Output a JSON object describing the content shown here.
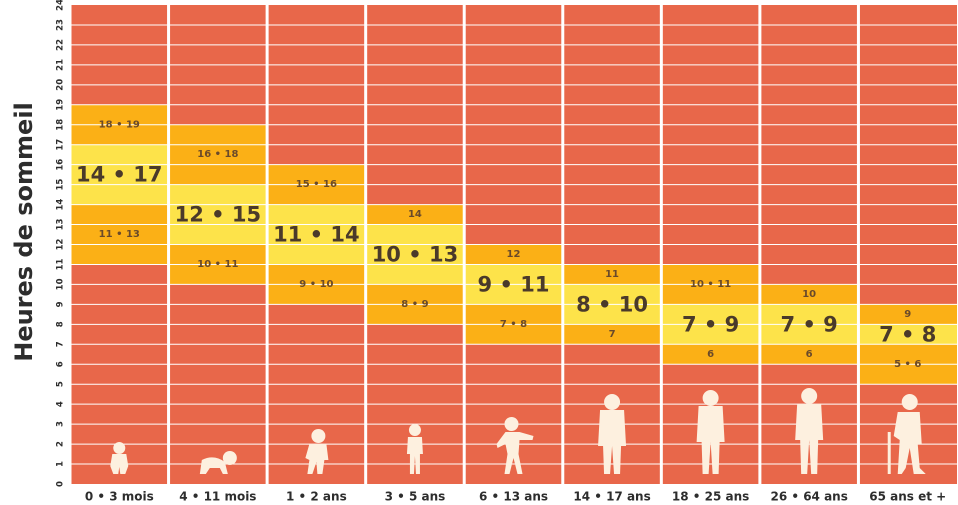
{
  "chart_data": {
    "type": "bar",
    "title": "",
    "ylabel": "Heures de sommeil",
    "xlabel": "",
    "ylim": [
      0,
      24
    ],
    "yticks": [
      "0",
      "1",
      "2",
      "3",
      "4",
      "5",
      "6",
      "7",
      "8",
      "9",
      "10",
      "11",
      "12",
      "13",
      "14",
      "15",
      "16",
      "17",
      "18",
      "19",
      "20",
      "21",
      "22",
      "23",
      "24"
    ],
    "grid": true,
    "categories": [
      "0 • 3 mois",
      "4 • 11 mois",
      "1 • 2 ans",
      "3 • 5 ans",
      "6 • 13 ans",
      "14 • 17 ans",
      "18 • 25 ans",
      "26 • 64 ans",
      "65 ans et +"
    ],
    "recommended": [
      {
        "range": [
          14,
          17
        ],
        "label": "14 • 17"
      },
      {
        "range": [
          12,
          15
        ],
        "label": "12 • 15"
      },
      {
        "range": [
          11,
          14
        ],
        "label": "11 • 14"
      },
      {
        "range": [
          10,
          13
        ],
        "label": "10 • 13"
      },
      {
        "range": [
          9,
          11
        ],
        "label": "9 • 11"
      },
      {
        "range": [
          8,
          10
        ],
        "label": "8 • 10"
      },
      {
        "range": [
          7,
          9
        ],
        "label": "7 • 9"
      },
      {
        "range": [
          7,
          9
        ],
        "label": "7 • 9"
      },
      {
        "range": [
          7,
          8
        ],
        "label": "7 • 8"
      }
    ],
    "acceptable_upper": [
      {
        "range": [
          17,
          19
        ],
        "label": "18 • 19"
      },
      {
        "range": [
          15,
          18
        ],
        "label": "16 • 18"
      },
      {
        "range": [
          14,
          16
        ],
        "label": "15 • 16"
      },
      {
        "range": [
          13,
          14
        ],
        "label": "14"
      },
      {
        "range": [
          11,
          12
        ],
        "label": "12"
      },
      {
        "range": [
          10,
          11
        ],
        "label": "11"
      },
      {
        "range": [
          9,
          11
        ],
        "label": "10 • 11"
      },
      {
        "range": [
          9,
          10
        ],
        "label": "10"
      },
      {
        "range": [
          8,
          9
        ],
        "label": "9"
      }
    ],
    "acceptable_lower": [
      {
        "range": [
          11,
          14
        ],
        "label": "11 • 13"
      },
      {
        "range": [
          10,
          12
        ],
        "label": "10 • 11"
      },
      {
        "range": [
          9,
          11
        ],
        "label": "9 • 10"
      },
      {
        "range": [
          8,
          10
        ],
        "label": "8 • 9"
      },
      {
        "range": [
          7,
          9
        ],
        "label": "7 • 8"
      },
      {
        "range": [
          7,
          8
        ],
        "label": "7"
      },
      {
        "range": [
          6,
          7
        ],
        "label": "6"
      },
      {
        "range": [
          6,
          7
        ],
        "label": "6"
      },
      {
        "range": [
          5,
          7
        ],
        "label": "5 • 6"
      }
    ],
    "icons": [
      "baby-icon",
      "crawling-baby-icon",
      "toddler-icon",
      "child-icon",
      "running-child-icon",
      "teen-icon",
      "young-adult-icon",
      "adult-icon",
      "senior-with-cane-icon"
    ],
    "colors": {
      "background": "#e8674a",
      "gridline": "#ffffff",
      "recommended": "#fde34a",
      "acceptable": "#fbb016",
      "silhouette": "#fdf0df",
      "text": "#2d2d2d"
    }
  }
}
